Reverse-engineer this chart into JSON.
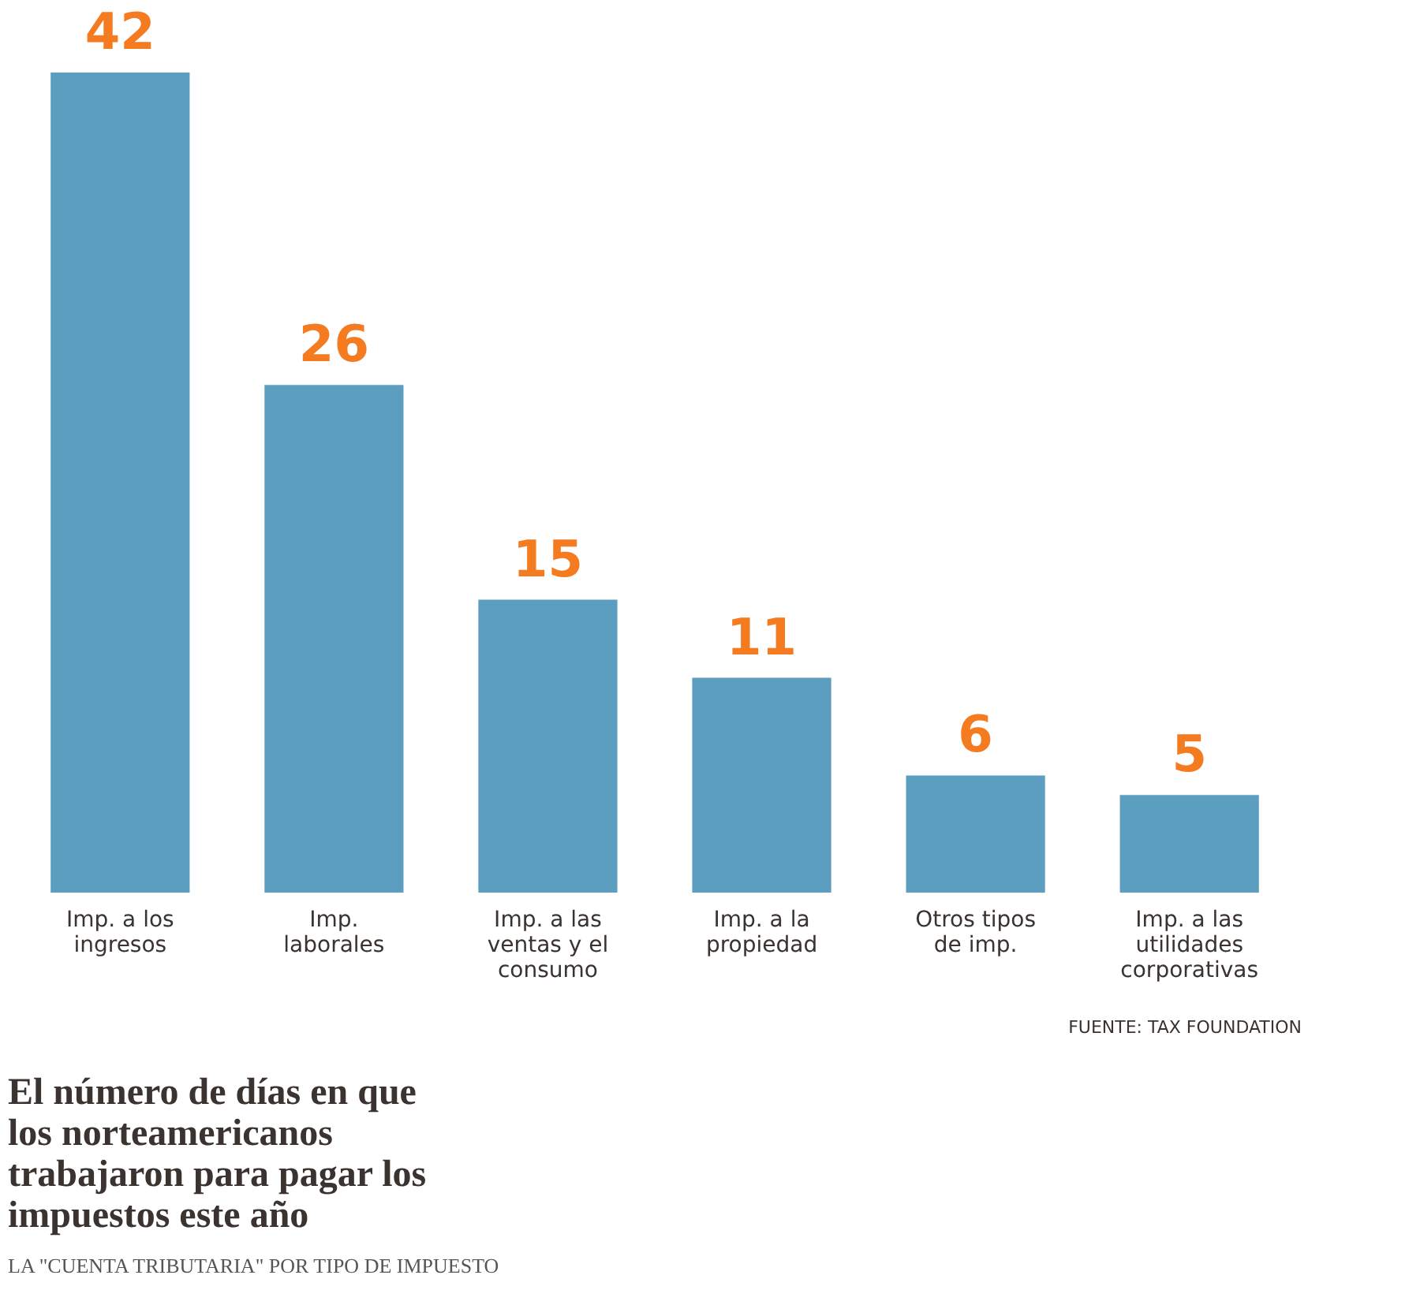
{
  "chart_data": {
    "type": "bar",
    "title": "El número de días en que los norteamericanos trabajaron para pagar los impuestos este año",
    "subtitle": "LA \"CUENTA TRIBUTARIA\" POR TIPO DE IMPUESTO",
    "categories": [
      "Imp. a los ingresos",
      "Imp. laborales",
      "Imp. a las ventas y el consumo",
      "Imp. a la propiedad",
      "Otros tipos de imp.",
      "Imp. a las utilidades corporativas"
    ],
    "values": [
      42,
      26,
      15,
      11,
      6,
      5
    ],
    "color": "#5b9ec0",
    "data_labels": true,
    "annotations": [
      "FUENTE: TAX FOUNDATION"
    ]
  }
}
